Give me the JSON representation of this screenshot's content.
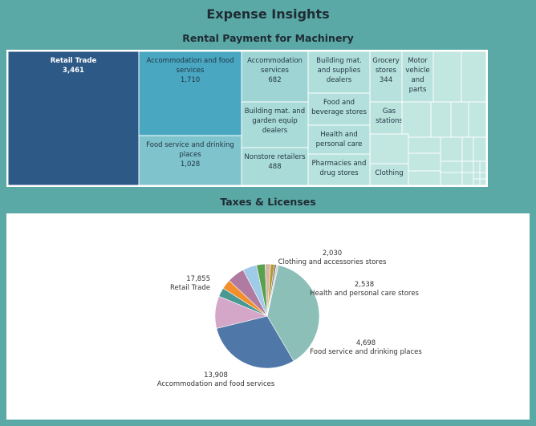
{
  "dashboard": {
    "title": "Expense Insights"
  },
  "treemap": {
    "title": "Rental Payment for Machinery",
    "chart_data": {
      "type": "treemap",
      "title": "Rental Payment for Machinery",
      "cells": [
        {
          "name": "Retail Trade",
          "value": 3461,
          "label": "3,461",
          "color": "#2d5986",
          "text": "#ffffff"
        },
        {
          "name": "Accommodation and food services",
          "value": 1710,
          "label": "1,710",
          "color": "#4aa7c2",
          "text": "#1f3340"
        },
        {
          "name": "Food service and drinking places",
          "value": 1028,
          "label": "1,028",
          "color": "#7fc3cc",
          "text": "#1f3340"
        },
        {
          "name": "Accommodation services",
          "value": 682,
          "label": "682",
          "color": "#9ed5d4",
          "text": "#1f3340"
        },
        {
          "name": "Building mat. and garden equip dealers",
          "value": null,
          "label": "",
          "color": "#a9dbd8",
          "text": "#1f3340"
        },
        {
          "name": "Nonstore retailers",
          "value": 488,
          "label": "488",
          "color": "#a9dbd8",
          "text": "#1f3340"
        },
        {
          "name": "Building mat. and supplies dealers",
          "value": null,
          "label": "",
          "color": "#b0dfdb",
          "text": "#1f3340"
        },
        {
          "name": "Food and beverage stores",
          "value": null,
          "label": "",
          "color": "#b3e0dc",
          "text": "#1f3340"
        },
        {
          "name": "Health and personal care",
          "value": null,
          "label": "",
          "color": "#b3e0dc",
          "text": "#1f3340"
        },
        {
          "name": "Pharmacies and drug stores",
          "value": null,
          "label": "",
          "color": "#b8e2dd",
          "text": "#1f3340"
        },
        {
          "name": "Grocery stores",
          "value": 344,
          "label": "344",
          "color": "#b6e1dc",
          "text": "#1f3340"
        },
        {
          "name": "Motor vehicle and parts",
          "value": null,
          "label": "",
          "color": "#b8e2dd",
          "text": "#1f3340"
        },
        {
          "name": "Gas stations",
          "value": null,
          "label": "",
          "color": "#bbe3de",
          "text": "#1f3340"
        },
        {
          "name": "Clothing",
          "value": null,
          "label": "",
          "color": "#bee4df",
          "text": "#1f3340"
        }
      ],
      "small_cell_color": "#c2e6e0"
    }
  },
  "pie": {
    "title": "Taxes & Licenses",
    "chart_data": {
      "type": "pie",
      "title": "Taxes & Licenses",
      "slices": [
        {
          "name": "Retail Trade",
          "value": 17855,
          "label": "17,855",
          "color": "#8cbfb8",
          "labeled": true
        },
        {
          "name": "Accommodation and food services",
          "value": 13908,
          "label": "13,908",
          "color": "#4f78a8",
          "labeled": true
        },
        {
          "name": "Food service and drinking places",
          "value": 4698,
          "label": "4,698",
          "color": "#d4a6c8",
          "labeled": true
        },
        {
          "name": "",
          "value": 1300,
          "label": "",
          "color": "#499894",
          "labeled": false
        },
        {
          "name": "",
          "value": 1400,
          "label": "",
          "color": "#f28e2b",
          "labeled": false
        },
        {
          "name": "Health and personal care stores",
          "value": 2538,
          "label": "2,538",
          "color": "#b07aa1",
          "labeled": true
        },
        {
          "name": "Clothing and accessories stores",
          "value": 2030,
          "label": "2,030",
          "color": "#a0cbe8",
          "labeled": true
        },
        {
          "name": "",
          "value": 1250,
          "label": "",
          "color": "#59a14f",
          "labeled": false
        },
        {
          "name": "",
          "value": 800,
          "label": "",
          "color": "#d7b5a6",
          "labeled": false
        },
        {
          "name": "",
          "value": 550,
          "label": "",
          "color": "#b6992d",
          "labeled": false
        },
        {
          "name": "",
          "value": 280,
          "label": "",
          "color": "#79706e",
          "labeled": false
        },
        {
          "name": "",
          "value": 300,
          "label": "",
          "color": "#d3d3d3",
          "labeled": false
        }
      ]
    }
  }
}
